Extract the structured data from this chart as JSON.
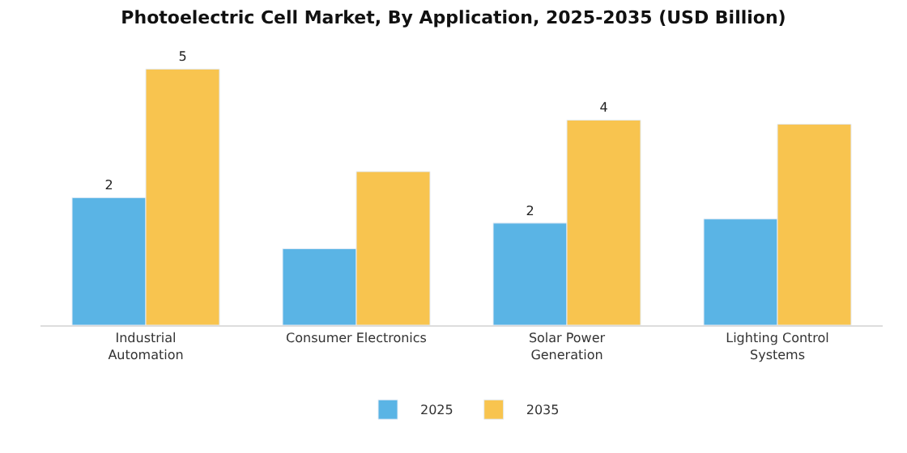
{
  "chart_data": {
    "type": "bar",
    "title": "Photoelectric Cell Market, By Application, 2025-2035 (USD Billion)",
    "categories": [
      "Industrial\nAutomation",
      "Consumer Electronics",
      "Solar Power\nGeneration",
      "Lighting Control\nSystems"
    ],
    "series": [
      {
        "name": "2025",
        "color": "#5ab4e5",
        "values": [
          2.45,
          1.47,
          1.96,
          2.04
        ],
        "value_labels": [
          "2",
          null,
          "2",
          null
        ]
      },
      {
        "name": "2035",
        "color": "#f8c44f",
        "values": [
          4.92,
          2.95,
          3.94,
          3.86
        ],
        "value_labels": [
          "5",
          null,
          "4",
          null
        ]
      }
    ],
    "tick_labels": "x",
    "legend": "bottom"
  }
}
